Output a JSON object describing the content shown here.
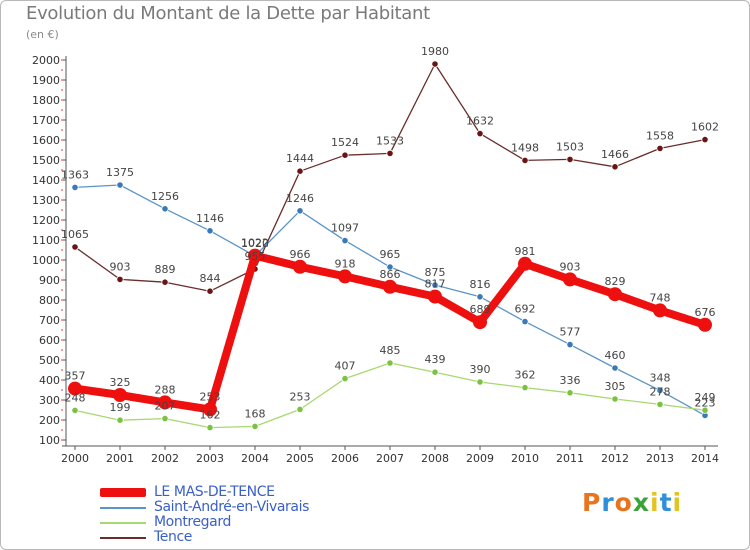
{
  "header": {
    "title": "Evolution du Montant de la Dette par Habitant",
    "unit": "(en €)"
  },
  "chart_data": {
    "type": "line",
    "title": "Evolution du Montant de la Dette par Habitant",
    "subtitle": "(en €)",
    "xlabel": "",
    "ylabel": "",
    "x": [
      2000,
      2001,
      2002,
      2003,
      2004,
      2005,
      2006,
      2007,
      2008,
      2009,
      2010,
      2011,
      2012,
      2013,
      2014
    ],
    "ylim": [
      100,
      2000
    ],
    "yticks": [
      100,
      200,
      300,
      400,
      500,
      600,
      700,
      800,
      900,
      1000,
      1100,
      1200,
      1300,
      1400,
      1500,
      1600,
      1700,
      1800,
      1900,
      2000
    ],
    "grid": false,
    "legend_position": "bottom-left",
    "series": [
      {
        "name": "Tence",
        "color": "#6b2c2c",
        "marker": "#6b1414",
        "values": [
          1065,
          903,
          889,
          844,
          955,
          1444,
          1524,
          1533,
          1980,
          1632,
          1498,
          1503,
          1466,
          1558,
          1602
        ]
      },
      {
        "name": "Saint-André-en-Vivarais",
        "color": "#5b94c8",
        "marker": "#3a78b8",
        "values": [
          1363,
          1375,
          1256,
          1146,
          1020,
          1246,
          1097,
          965,
          875,
          816,
          692,
          577,
          460,
          348,
          223
        ]
      },
      {
        "name": "Montregard",
        "color": "#a8d870",
        "marker": "#7cc242",
        "values": [
          248,
          199,
          207,
          162,
          168,
          253,
          407,
          485,
          439,
          390,
          362,
          336,
          305,
          278,
          249
        ]
      },
      {
        "name": "LE MAS-DE-TENCE",
        "color": "#ee0f0f",
        "marker": "#ee0f0f",
        "values": [
          357,
          325,
          288,
          253,
          1022,
          966,
          918,
          866,
          817,
          689,
          981,
          903,
          829,
          748,
          676
        ]
      }
    ]
  },
  "legend": [
    {
      "label": "LE MAS-DE-TENCE",
      "color": "#ee0f0f",
      "label_color": "#3a5fc8"
    },
    {
      "label": "Saint-André-en-Vivarais",
      "color": "#5b94c8",
      "label_color": "#3a5fc8"
    },
    {
      "label": "Montregard",
      "color": "#a8d870",
      "label_color": "#3a5fc8"
    },
    {
      "label": "Tence",
      "color": "#6b2c2c",
      "label_color": "#3a5fc8"
    }
  ],
  "logo": {
    "text": "Proxiti",
    "colors": [
      "#e8741e",
      "#2f8fd8",
      "#e8741e",
      "#3aa536",
      "#e2c322",
      "#2f8fd8",
      "#e2c322"
    ]
  }
}
